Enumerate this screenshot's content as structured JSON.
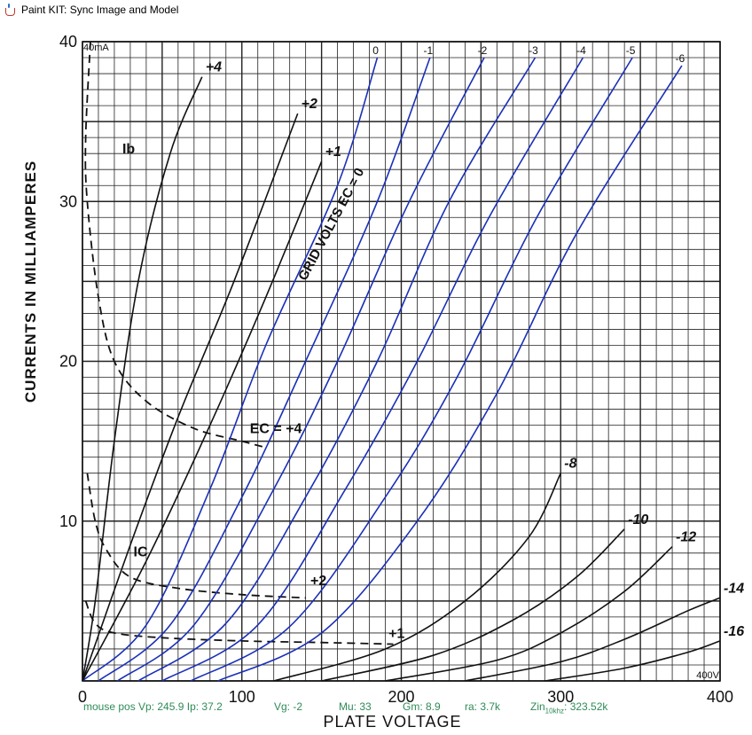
{
  "window": {
    "title": "Paint KIT: Sync Image and Model"
  },
  "chart_data": {
    "type": "line",
    "xlabel": "PLATE VOLTAGE",
    "ylabel": "CURRENTS IN MILLIAMPERES",
    "xlim": [
      0,
      400
    ],
    "ylim": [
      0,
      40
    ],
    "x_ticks": [
      "0",
      "100",
      "200",
      "300",
      "400"
    ],
    "y_ticks": [
      "10",
      "20",
      "30",
      "40"
    ],
    "grid": true,
    "corner_labels": {
      "top_left": "40mA",
      "bottom_right": "400V"
    },
    "annotations": [
      {
        "text": "GRID VOLTS EC = 0",
        "x": 140,
        "y": 25
      },
      {
        "text": "EC = +4",
        "x": 105,
        "y": 15.5
      },
      {
        "text": "Ib",
        "x": 25,
        "y": 33
      },
      {
        "text": "IC",
        "x": 32,
        "y": 7.8
      },
      {
        "text": "+2",
        "x": 143,
        "y": 6
      },
      {
        "text": "+1",
        "x": 192,
        "y": 2.7
      }
    ],
    "series": [
      {
        "name": "0",
        "color": "#1a2fb8",
        "points": [
          [
            0,
            0
          ],
          [
            40,
            3.5
          ],
          [
            80,
            12
          ],
          [
            115,
            21
          ],
          [
            160,
            31
          ],
          [
            185,
            39
          ]
        ]
      },
      {
        "name": "-1",
        "color": "#1a2fb8",
        "points": [
          [
            10,
            0
          ],
          [
            55,
            3.5
          ],
          [
            100,
            11.5
          ],
          [
            140,
            20
          ],
          [
            185,
            30
          ],
          [
            218,
            39
          ]
        ]
      },
      {
        "name": "-2",
        "color": "#1a2fb8",
        "points": [
          [
            22,
            0
          ],
          [
            70,
            3.5
          ],
          [
            120,
            12
          ],
          [
            160,
            20
          ],
          [
            205,
            30
          ],
          [
            252,
            39
          ]
        ]
      },
      {
        "name": "-3",
        "color": "#1a2fb8",
        "points": [
          [
            35,
            0
          ],
          [
            90,
            3.6
          ],
          [
            140,
            11.5
          ],
          [
            185,
            20
          ],
          [
            230,
            30
          ],
          [
            284,
            39
          ]
        ]
      },
      {
        "name": "-4",
        "color": "#1a2fb8",
        "points": [
          [
            50,
            0
          ],
          [
            110,
            3.5
          ],
          [
            165,
            12
          ],
          [
            210,
            20
          ],
          [
            255,
            29
          ],
          [
            314,
            39
          ]
        ]
      },
      {
        "name": "-5",
        "color": "#1a2fb8",
        "points": [
          [
            68,
            0
          ],
          [
            130,
            3.4
          ],
          [
            190,
            11.5
          ],
          [
            235,
            19
          ],
          [
            285,
            29
          ],
          [
            345,
            39
          ]
        ]
      },
      {
        "name": "-6",
        "color": "#1a2fb8",
        "points": [
          [
            85,
            0
          ],
          [
            150,
            3
          ],
          [
            210,
            10
          ],
          [
            260,
            18
          ],
          [
            310,
            28
          ],
          [
            376,
            38.5
          ]
        ]
      },
      {
        "name": "+4",
        "color": "#111111",
        "points": [
          [
            0,
            0
          ],
          [
            8,
            5
          ],
          [
            20,
            15
          ],
          [
            35,
            25
          ],
          [
            55,
            33
          ],
          [
            75,
            37.8
          ]
        ]
      },
      {
        "name": "+2",
        "color": "#111111",
        "points": [
          [
            0,
            0
          ],
          [
            30,
            8.5
          ],
          [
            60,
            16.5
          ],
          [
            95,
            25
          ],
          [
            135,
            35.5
          ]
        ]
      },
      {
        "name": "+1",
        "color": "#111111",
        "points": [
          [
            0,
            0
          ],
          [
            40,
            7.5
          ],
          [
            80,
            16
          ],
          [
            115,
            24
          ],
          [
            150,
            32.5
          ]
        ]
      },
      {
        "name": "-8",
        "color": "#111111",
        "points": [
          [
            120,
            0
          ],
          [
            190,
            2
          ],
          [
            240,
            5
          ],
          [
            280,
            9
          ],
          [
            300,
            13
          ]
        ]
      },
      {
        "name": "-10",
        "color": "#111111",
        "points": [
          [
            150,
            0
          ],
          [
            220,
            1.6
          ],
          [
            270,
            3.8
          ],
          [
            310,
            6.5
          ],
          [
            340,
            9.5
          ]
        ]
      },
      {
        "name": "-12",
        "color": "#111111",
        "points": [
          [
            190,
            0
          ],
          [
            260,
            1.3
          ],
          [
            300,
            3
          ],
          [
            340,
            5.6
          ],
          [
            370,
            8.4
          ]
        ]
      },
      {
        "name": "-14",
        "color": "#111111",
        "points": [
          [
            240,
            0
          ],
          [
            300,
            1.2
          ],
          [
            340,
            2.6
          ],
          [
            380,
            4.4
          ],
          [
            400,
            5.2
          ]
        ]
      },
      {
        "name": "-16",
        "color": "#111111",
        "points": [
          [
            290,
            0
          ],
          [
            340,
            0.8
          ],
          [
            380,
            1.8
          ],
          [
            400,
            2.5
          ]
        ]
      }
    ],
    "dashed_series": [
      {
        "name": "Ec = +4 grid current",
        "points": [
          [
            5,
            40
          ],
          [
            2,
            34
          ],
          [
            3,
            30
          ],
          [
            10,
            24
          ],
          [
            20,
            20
          ],
          [
            40,
            17.5
          ],
          [
            70,
            15.8
          ],
          [
            100,
            15
          ],
          [
            115,
            14.6
          ]
        ]
      },
      {
        "name": "Ic +2",
        "points": [
          [
            3,
            13
          ],
          [
            8,
            10
          ],
          [
            15,
            8.2
          ],
          [
            30,
            6.5
          ],
          [
            60,
            5.8
          ],
          [
            100,
            5.4
          ],
          [
            140,
            5.2
          ]
        ]
      },
      {
        "name": "Ic +1",
        "points": [
          [
            2,
            5
          ],
          [
            8,
            3.6
          ],
          [
            20,
            3
          ],
          [
            50,
            2.7
          ],
          [
            100,
            2.5
          ],
          [
            150,
            2.4
          ],
          [
            195,
            2.3
          ]
        ]
      }
    ]
  },
  "status_bar": {
    "mouse_pos": "mouse pos Vp: 245.9  Ip: 37.2",
    "vg": "Vg: -2",
    "mu": "Mu: 33",
    "gm": "Gm: 8.9",
    "ra": "ra: 3.7k",
    "zin_prefix": "Zin",
    "zin_sub": "10khz",
    "zin_value": ": 323.52k"
  }
}
